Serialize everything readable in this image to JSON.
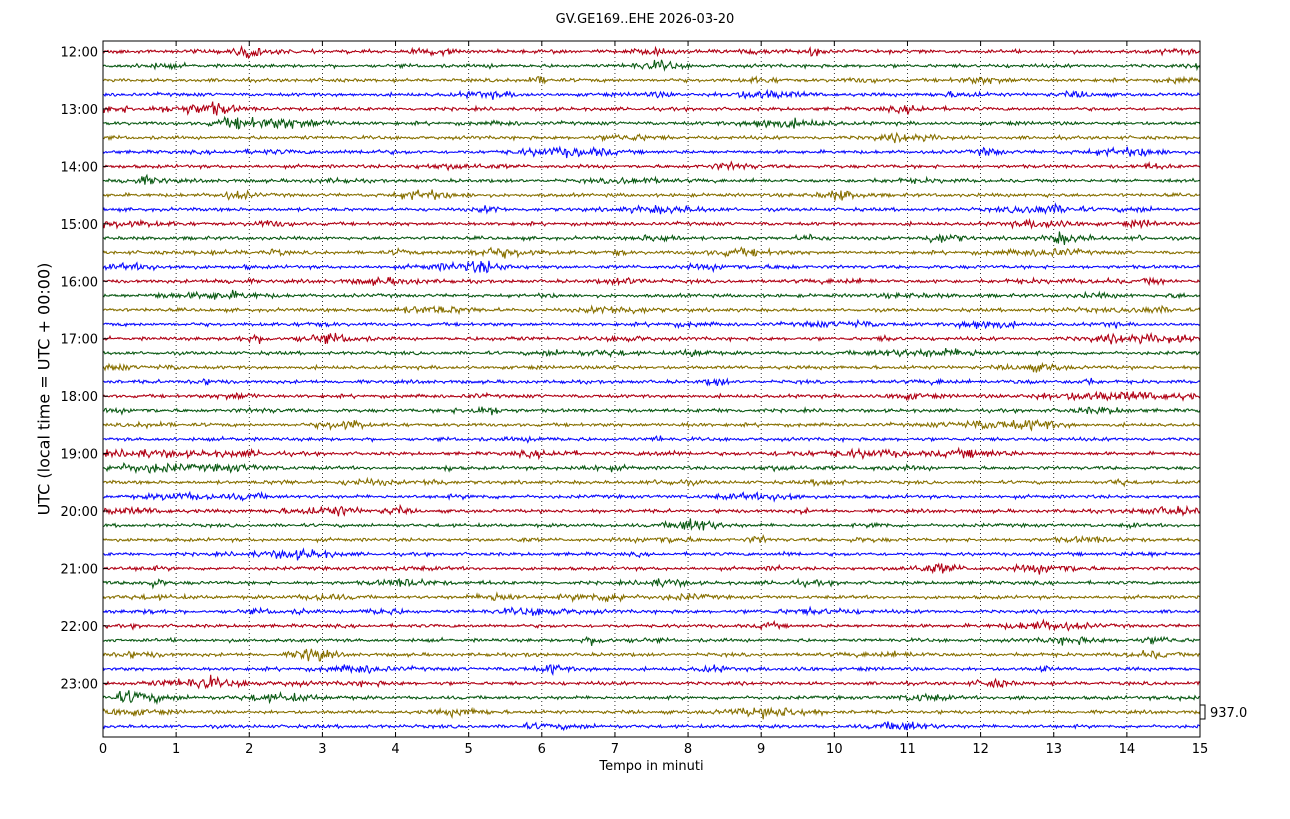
{
  "chart_data": {
    "type": "line",
    "title": "GV.GE169..EHE 2026-03-20",
    "xlabel": "Tempo in minuti",
    "ylabel": "UTC (local time = UTC + 00:00)",
    "xlim": [
      0,
      15
    ],
    "x_ticks": [
      "0",
      "1",
      "2",
      "3",
      "4",
      "5",
      "6",
      "7",
      "8",
      "9",
      "10",
      "11",
      "12",
      "13",
      "14",
      "15"
    ],
    "y_ticks": [
      "12:00",
      "13:00",
      "14:00",
      "15:00",
      "16:00",
      "17:00",
      "18:00",
      "19:00",
      "20:00",
      "21:00",
      "22:00",
      "23:00"
    ],
    "row_interval_minutes": 15,
    "start_time": "12:00",
    "rows": 48,
    "colors": [
      "#b00014",
      "#0b5a14",
      "#877000",
      "#0a0aff"
    ],
    "grid": "vertical dotted",
    "scale_annotation": "937.0"
  }
}
